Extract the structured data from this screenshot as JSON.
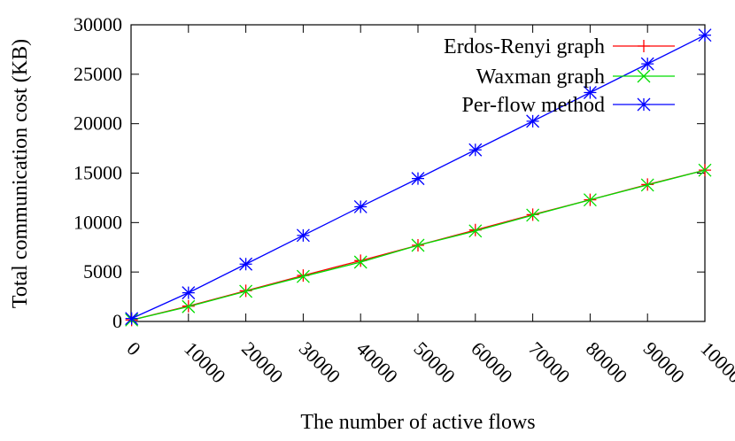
{
  "chart_data": {
    "type": "line",
    "title": "",
    "xlabel": "The number of active flows",
    "ylabel": "Total communication cost (KB)",
    "xlim": [
      0,
      100000
    ],
    "ylim": [
      0,
      30000
    ],
    "x": [
      100,
      10000,
      20000,
      30000,
      40000,
      50000,
      60000,
      70000,
      80000,
      90000,
      100000
    ],
    "xticks": [
      "0",
      "10000",
      "20000",
      "30000",
      "40000",
      "50000",
      "60000",
      "70000",
      "80000",
      "90000",
      "100000"
    ],
    "yticks": [
      "0",
      "5000",
      "10000",
      "15000",
      "20000",
      "25000",
      "30000"
    ],
    "legend_position": "top-right",
    "grid": false,
    "series": [
      {
        "name": "Erdos-Renyi graph",
        "color": "#ff0000",
        "marker": "plus",
        "values": [
          150,
          1550,
          3100,
          4650,
          6150,
          7700,
          9250,
          10800,
          12300,
          13850,
          15300
        ]
      },
      {
        "name": "Waxman graph",
        "color": "#00dd00",
        "marker": "x",
        "values": [
          150,
          1500,
          3050,
          4550,
          6000,
          7700,
          9150,
          10750,
          12300,
          13800,
          15300
        ]
      },
      {
        "name": "Per-flow method",
        "color": "#0000ff",
        "marker": "star",
        "values": [
          300,
          2900,
          5800,
          8700,
          11600,
          14450,
          17350,
          20250,
          23150,
          26050,
          28950
        ]
      }
    ]
  }
}
